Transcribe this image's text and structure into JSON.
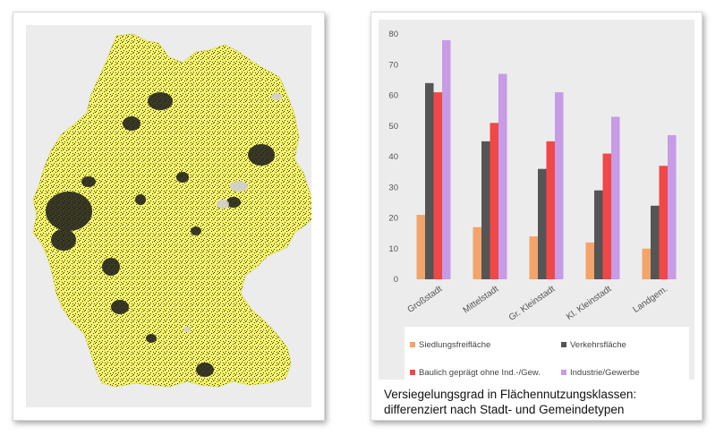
{
  "caption": {
    "line1": "Versiegelungsgrad  in Flächennutzungsklassen:",
    "line2": "differenziert nach Stadt- und Gemeindetypen"
  },
  "map": {
    "land_color": "#f7f56a",
    "density_color": "#1a1a1a",
    "background_color": "#ececec"
  },
  "chart_data": {
    "type": "bar",
    "categories": [
      "Großstadt",
      "Mittelstadt",
      "Gr. Kleinstadt",
      "Kl. Kleinstadt",
      "Landgem."
    ],
    "series": [
      {
        "name": "Siedlungsfreifläche",
        "color": "#f2a46a",
        "values": [
          21,
          17,
          14,
          12,
          10
        ]
      },
      {
        "name": "Verkehrsfläche",
        "color": "#555555",
        "values": [
          64,
          45,
          36,
          29,
          24
        ]
      },
      {
        "name": "Baulich geprägt ohne Ind.-/Gew.",
        "color": "#f04848",
        "values": [
          61,
          51,
          45,
          41,
          37
        ]
      },
      {
        "name": "Industrie/Gewerbe",
        "color": "#c79be6",
        "values": [
          78,
          67,
          61,
          53,
          47
        ]
      }
    ],
    "ylim": [
      0,
      80
    ],
    "yticks": [
      "0",
      "10",
      "20",
      "30",
      "40",
      "50",
      "60",
      "70",
      "80"
    ],
    "grid": false,
    "legend": "bottom"
  }
}
